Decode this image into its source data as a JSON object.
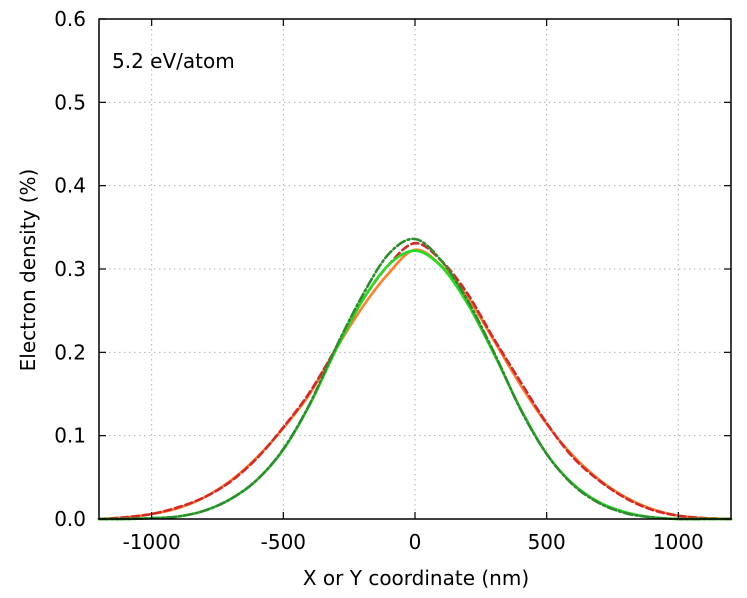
{
  "chart_data": {
    "type": "line",
    "xlabel": "X or Y coordinate (nm)",
    "ylabel": "Electron density (%)",
    "xlim": [
      -1200,
      1200
    ],
    "ylim": [
      0,
      0.6
    ],
    "xticks": [
      -1000,
      -500,
      0,
      500,
      1000
    ],
    "xtick_labels": [
      "-1000",
      "-500",
      "0",
      "500",
      "1000"
    ],
    "yticks": [
      0,
      0.1,
      0.2,
      0.3,
      0.4,
      0.5,
      0.6
    ],
    "ytick_labels": [
      "0.0",
      "0.1",
      "0.2",
      "0.3",
      "0.4",
      "0.5",
      "0.6"
    ],
    "grid": true,
    "annotation": "5.2 eV/atom",
    "x": [
      -1200,
      -1100,
      -1000,
      -900,
      -800,
      -700,
      -600,
      -500,
      -400,
      -300,
      -200,
      -100,
      0,
      100,
      200,
      300,
      400,
      500,
      600,
      700,
      800,
      900,
      1000,
      1100,
      1200
    ],
    "series": [
      {
        "color": "#ff7f2a",
        "style": "solid",
        "values": [
          0.0,
          0.002,
          0.006,
          0.013,
          0.026,
          0.046,
          0.074,
          0.109,
          0.15,
          0.204,
          0.254,
          0.295,
          0.323,
          0.304,
          0.266,
          0.214,
          0.161,
          0.114,
          0.076,
          0.047,
          0.026,
          0.012,
          0.004,
          0.001,
          0.0
        ]
      },
      {
        "color": "#d62728",
        "style": "dashed",
        "values": [
          0.0,
          0.002,
          0.006,
          0.014,
          0.026,
          0.045,
          0.073,
          0.11,
          0.152,
          0.205,
          0.262,
          0.305,
          0.331,
          0.31,
          0.27,
          0.216,
          0.165,
          0.115,
          0.074,
          0.046,
          0.025,
          0.011,
          0.004,
          0.001,
          0.0
        ]
      },
      {
        "color": "#22dd22",
        "style": "solid",
        "values": [
          0.0,
          0.0,
          0.001,
          0.003,
          0.01,
          0.024,
          0.047,
          0.083,
          0.137,
          0.203,
          0.262,
          0.305,
          0.322,
          0.303,
          0.258,
          0.198,
          0.133,
          0.078,
          0.042,
          0.02,
          0.008,
          0.002,
          0.0,
          0.0,
          0.0
        ]
      },
      {
        "color": "#2e8b2e",
        "style": "dashdot",
        "values": [
          0.0,
          0.0,
          0.001,
          0.003,
          0.01,
          0.024,
          0.047,
          0.084,
          0.138,
          0.206,
          0.268,
          0.318,
          0.336,
          0.31,
          0.262,
          0.2,
          0.132,
          0.078,
          0.041,
          0.019,
          0.007,
          0.002,
          0.0,
          0.0,
          0.0
        ]
      }
    ]
  }
}
